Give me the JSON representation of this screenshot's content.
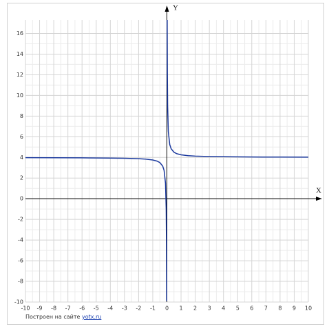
{
  "chart_data": {
    "type": "line",
    "x_label": "X",
    "y_label": "Y",
    "x": [
      -10,
      -8,
      -6,
      -4,
      -3,
      -2,
      -1.5,
      -1,
      -0.7,
      -0.5,
      -0.3,
      -0.2,
      -0.1,
      -0.05,
      -0.03,
      -0.02,
      -0.018,
      0,
      0.0188,
      0.02,
      0.03,
      0.05,
      0.1,
      0.2,
      0.3,
      0.5,
      0.7,
      1,
      1.5,
      2,
      3,
      4,
      6,
      8,
      10
    ],
    "series": [
      {
        "color": "#1c3a9e",
        "values": [
          3.975,
          3.969,
          3.958,
          3.938,
          3.917,
          3.875,
          3.833,
          3.75,
          3.643,
          3.5,
          3.167,
          2.75,
          1.5,
          -1,
          -4.333,
          -8.5,
          -9.889,
          null,
          17.298,
          16.5,
          12.333,
          9,
          6.5,
          5.25,
          4.833,
          4.5,
          4.357,
          4.25,
          4.167,
          4.125,
          4.083,
          4.063,
          4.042,
          4.031,
          4.025
        ]
      }
    ],
    "xlim": [
      -10,
      10
    ],
    "ylim": [
      -10,
      17.3
    ],
    "xticks": [
      -10,
      -9,
      -8,
      -7,
      -6,
      -5,
      -4,
      -3,
      -2,
      -1,
      0,
      1,
      2,
      3,
      4,
      5,
      6,
      7,
      8,
      9,
      10
    ],
    "yticks": [
      -10,
      -8,
      -6,
      -4,
      -2,
      0,
      2,
      4,
      6,
      8,
      10,
      12,
      14,
      16
    ],
    "grid": true
  },
  "footer": {
    "text": "Построен на сайте",
    "link": "yotx.ru"
  }
}
